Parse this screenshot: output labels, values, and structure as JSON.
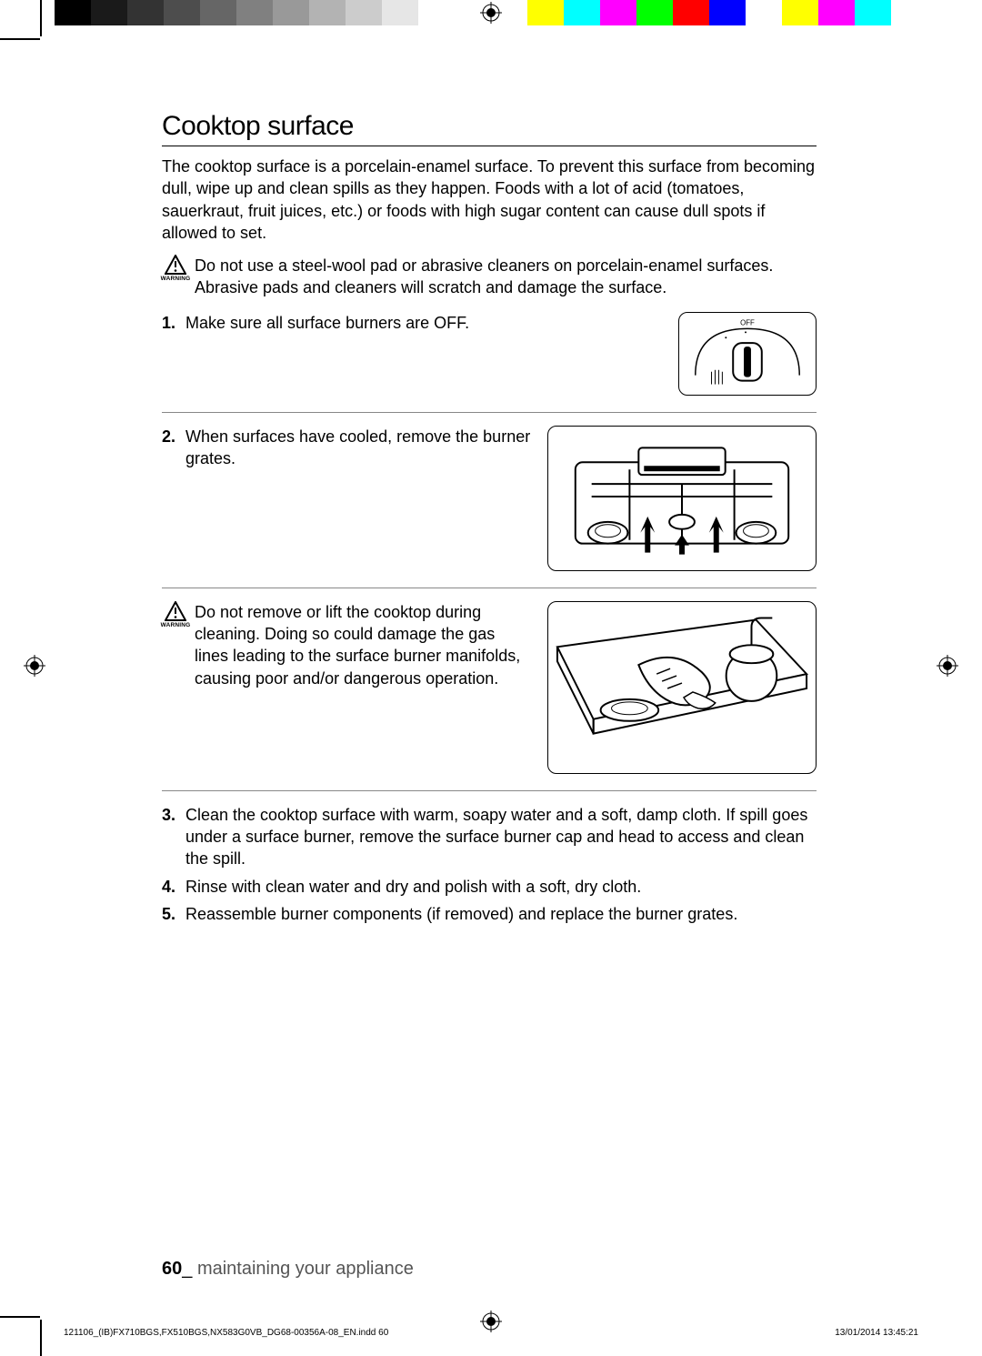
{
  "colorbar": [
    "#000000",
    "#1a1a1a",
    "#333333",
    "#4d4d4d",
    "#666666",
    "#808080",
    "#999999",
    "#b3b3b3",
    "#cccccc",
    "#e6e6e6",
    "#ffffff",
    "#ffffff",
    "#ffffff",
    "#ffff00",
    "#00ffff",
    "#ff00ff",
    "#00ff00",
    "#ff0000",
    "#0000ff",
    "#ffffff",
    "#ffff00",
    "#ff00ff",
    "#00ffff",
    "#ffffff"
  ],
  "title": "Cooktop surface",
  "intro": "The cooktop surface is a porcelain-enamel surface. To prevent this surface from becoming dull, wipe up and clean spills as they happen. Foods with a lot of acid (tomatoes, sauerkraut, fruit juices, etc.) or foods with high sugar content can cause dull spots if allowed to set.",
  "warning_label": "WARNING",
  "warning1": "Do not use a steel-wool pad or abrasive cleaners on porcelain-enamel surfaces. Abrasive pads and cleaners will scratch and damage the surface.",
  "steps": {
    "s1": {
      "n": "1.",
      "t": "Make sure all surface burners are OFF."
    },
    "s2": {
      "n": "2.",
      "t": "When surfaces have cooled, remove the burner grates."
    },
    "s3": {
      "n": "3.",
      "t": "Clean the cooktop surface with warm, soapy water and a soft, damp cloth. If spill goes under a surface burner, remove the surface burner cap and head to access and clean the spill."
    },
    "s4": {
      "n": "4.",
      "t": "Rinse with clean water and dry and polish with a soft, dry cloth."
    },
    "s5": {
      "n": "5.",
      "t": "Reassemble burner components (if removed) and replace the burner grates."
    }
  },
  "warning2": "Do not remove or lift the cooktop during cleaning. Doing so could damage the gas lines leading to the surface burner manifolds, causing poor and/or dangerous operation.",
  "knob_off_label": "OFF",
  "footer": {
    "page": "60",
    "sep": "_ ",
    "text": "maintaining your appliance"
  },
  "slug_left": "121106_(IB)FX710BGS,FX510BGS,NX583G0VB_DG68-00356A-08_EN.indd   60",
  "slug_right": "13/01/2014   13:45:21"
}
